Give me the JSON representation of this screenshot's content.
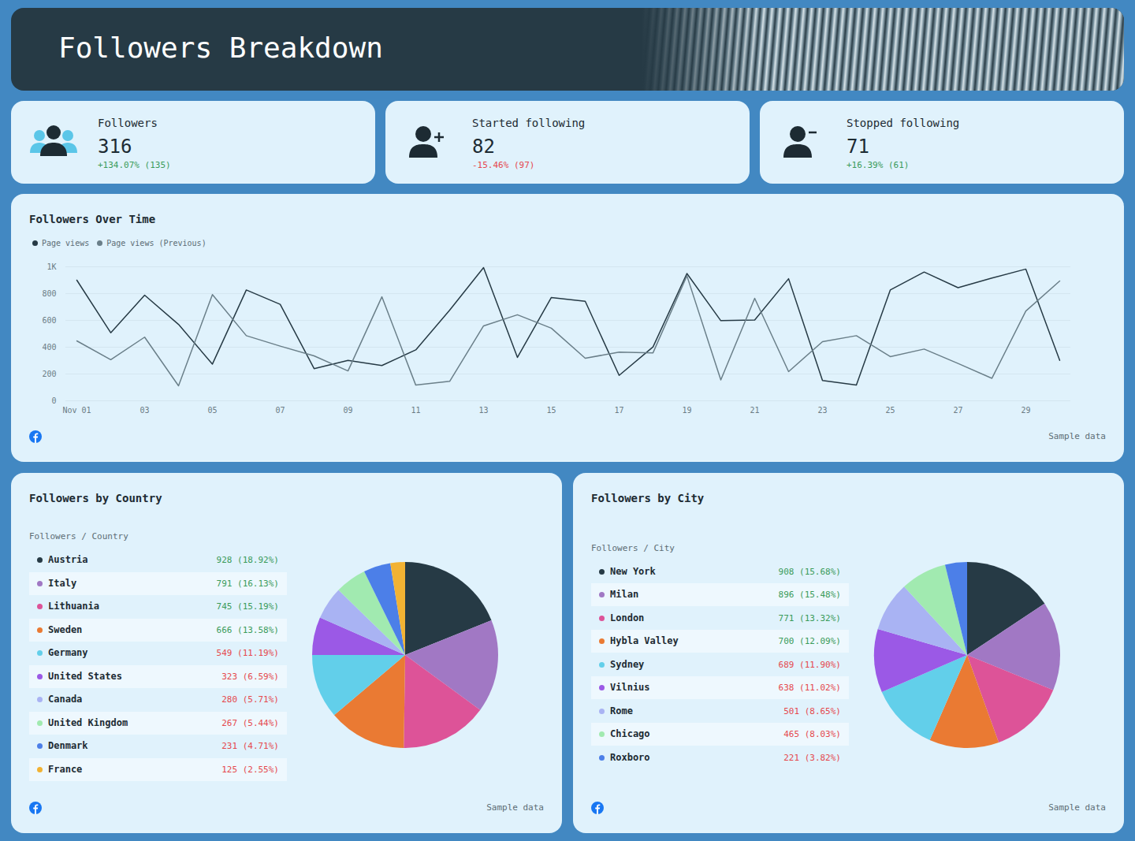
{
  "header": {
    "title": "Followers Breakdown"
  },
  "cards": [
    {
      "label": "Followers",
      "value": 316,
      "change": "+134.07% (135)"
    },
    {
      "label": "Started following",
      "value": 82,
      "change": "-15.46% (97)"
    },
    {
      "label": "Stopped following",
      "value": 71,
      "change": "+16.39% (61)"
    }
  ],
  "chart_data": [
    {
      "type": "line",
      "title": "Followers Over Time",
      "categories": [
        "Nov 01",
        null,
        "03",
        null,
        "05",
        null,
        "07",
        null,
        "09",
        null,
        "11",
        null,
        "13",
        null,
        "15",
        null,
        "17",
        null,
        "19",
        null,
        "21",
        null,
        "23",
        null,
        "25",
        null,
        "27",
        null,
        "29",
        null
      ],
      "series": [
        {
          "name": "Page views",
          "color": "#263a45",
          "values": [
            900,
            508,
            788,
            570,
            274,
            827,
            720,
            240,
            302,
            263,
            380,
            676,
            994,
            324,
            771,
            743,
            190,
            402,
            950,
            598,
            603,
            911,
            151,
            117,
            827,
            961,
            844,
            916,
            983,
            302
          ]
        },
        {
          "name": "Page views (Previous)",
          "color": "#6a7f89",
          "values": [
            447,
            307,
            475,
            112,
            793,
            486,
            408,
            335,
            223,
            776,
            117,
            145,
            559,
            642,
            542,
            318,
            363,
            358,
            933,
            156,
            765,
            218,
            441,
            486,
            330,
            386,
            279,
            168,
            670,
            894
          ]
        }
      ],
      "ylim": [
        0,
        1000
      ],
      "yticks": [
        0,
        200,
        400,
        600,
        800,
        {
          "value": 1000,
          "label": "1K"
        }
      ],
      "grid": true,
      "legend": "top-left",
      "caption": "Sample data"
    },
    {
      "type": "pie",
      "title": "Followers by Country",
      "subtitle": "Followers / Country",
      "categories": [
        "Austria",
        "Italy",
        "Lithuania",
        "Sweden",
        "Germany",
        "United States",
        "Canada",
        "United Kingdom",
        "Denmark",
        "France"
      ],
      "values": [
        928,
        791,
        745,
        666,
        549,
        323,
        280,
        267,
        231,
        125
      ],
      "value_labels": [
        "928 (18.92%)",
        "791 (16.13%)",
        "745 (15.19%)",
        "666 (13.58%)",
        "549 (11.19%)",
        "323 (6.59%)",
        "280 (5.71%)",
        "267 (5.44%)",
        "231 (4.71%)",
        "125 (2.55%)"
      ],
      "colors": [
        "#263a45",
        "#a178c4",
        "#dd5398",
        "#ea7a33",
        "#62cfea",
        "#9b59e6",
        "#a9b3f3",
        "#a1eab0",
        "#4c7fe8",
        "#f2b233"
      ],
      "legend": "left",
      "caption": "Sample data"
    },
    {
      "type": "pie",
      "title": "Followers by City",
      "subtitle": "Followers / City",
      "categories": [
        "New York",
        "Milan",
        "London",
        "Hybla Valley",
        "Sydney",
        "Vilnius",
        "Rome",
        "Chicago",
        "Roxboro"
      ],
      "values": [
        908,
        896,
        771,
        700,
        689,
        638,
        501,
        465,
        221
      ],
      "value_labels": [
        "908 (15.68%)",
        "896 (15.48%)",
        "771 (13.32%)",
        "700 (12.09%)",
        "689 (11.90%)",
        "638 (11.02%)",
        "501 (8.65%)",
        "465 (8.03%)",
        "221 (3.82%)"
      ],
      "colors": [
        "#263a45",
        "#a178c4",
        "#dd5398",
        "#ea7a33",
        "#62cfea",
        "#9b59e6",
        "#a9b3f3",
        "#a1eab0",
        "#4c7fe8"
      ],
      "legend": "left",
      "caption": "Sample data"
    }
  ]
}
